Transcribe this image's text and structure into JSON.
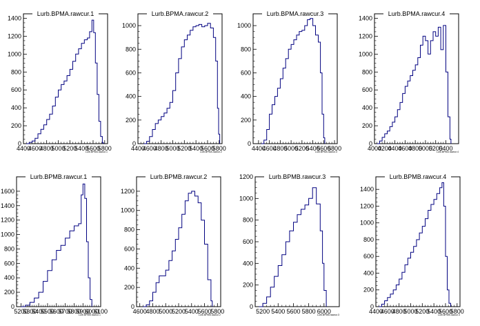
{
  "chart_data": [
    {
      "type": "histogram",
      "title": "Lurb.BPMA.rawcur.1",
      "xlabel": "Lurb.BPMA.rawcur.1",
      "xlim": [
        4400,
        5850
      ],
      "ylim": [
        0,
        1450
      ],
      "xticks": [
        4400,
        4600,
        4800,
        5000,
        5200,
        5400,
        5600,
        5800
      ],
      "yticks": [
        0,
        200,
        400,
        600,
        800,
        1000,
        1200,
        1400
      ],
      "curve": [
        [
          4450,
          0
        ],
        [
          4500,
          15
        ],
        [
          4550,
          30
        ],
        [
          4600,
          60
        ],
        [
          4650,
          110
        ],
        [
          4700,
          160
        ],
        [
          4750,
          210
        ],
        [
          4800,
          270
        ],
        [
          4850,
          330
        ],
        [
          4900,
          420
        ],
        [
          4950,
          520
        ],
        [
          5000,
          600
        ],
        [
          5050,
          660
        ],
        [
          5100,
          700
        ],
        [
          5150,
          760
        ],
        [
          5200,
          830
        ],
        [
          5250,
          920
        ],
        [
          5300,
          1000
        ],
        [
          5350,
          1060
        ],
        [
          5400,
          1120
        ],
        [
          5450,
          1160
        ],
        [
          5500,
          1180
        ],
        [
          5540,
          1250
        ],
        [
          5580,
          1380
        ],
        [
          5610,
          1240
        ],
        [
          5640,
          900
        ],
        [
          5670,
          550
        ],
        [
          5700,
          250
        ],
        [
          5730,
          80
        ],
        [
          5760,
          10
        ],
        [
          5780,
          0
        ]
      ]
    },
    {
      "type": "histogram",
      "title": "Lurb.BPMA.rawcur.2",
      "xlabel": "Lurb.BPMA.rawcur.2",
      "xlim": [
        4400,
        5850
      ],
      "ylim": [
        0,
        1100
      ],
      "xticks": [
        4400,
        4600,
        4800,
        5000,
        5200,
        5400,
        5600,
        5800
      ],
      "yticks": [
        0,
        200,
        400,
        600,
        800,
        1000
      ],
      "curve": [
        [
          4500,
          0
        ],
        [
          4550,
          20
        ],
        [
          4600,
          60
        ],
        [
          4650,
          120
        ],
        [
          4700,
          170
        ],
        [
          4750,
          200
        ],
        [
          4800,
          230
        ],
        [
          4850,
          260
        ],
        [
          4900,
          300
        ],
        [
          4950,
          350
        ],
        [
          5000,
          450
        ],
        [
          5050,
          600
        ],
        [
          5100,
          720
        ],
        [
          5150,
          820
        ],
        [
          5200,
          880
        ],
        [
          5250,
          920
        ],
        [
          5300,
          960
        ],
        [
          5350,
          990
        ],
        [
          5400,
          1000
        ],
        [
          5450,
          1010
        ],
        [
          5500,
          990
        ],
        [
          5550,
          1000
        ],
        [
          5600,
          1020
        ],
        [
          5650,
          980
        ],
        [
          5700,
          900
        ],
        [
          5740,
          700
        ],
        [
          5770,
          300
        ],
        [
          5790,
          80
        ],
        [
          5810,
          0
        ]
      ]
    },
    {
      "type": "histogram",
      "title": "Lurb.BPMA.rawcur.3",
      "xlabel": "Lurb.BPMA.rawcur.3",
      "xlim": [
        4300,
        5850
      ],
      "ylim": [
        0,
        1100
      ],
      "xticks": [
        4400,
        4600,
        4800,
        5000,
        5200,
        5400,
        5600,
        5800
      ],
      "yticks": [
        0,
        200,
        400,
        600,
        800,
        1000
      ],
      "curve": [
        [
          4450,
          0
        ],
        [
          4500,
          30
        ],
        [
          4550,
          120
        ],
        [
          4600,
          250
        ],
        [
          4650,
          330
        ],
        [
          4700,
          400
        ],
        [
          4750,
          470
        ],
        [
          4800,
          550
        ],
        [
          4850,
          640
        ],
        [
          4900,
          720
        ],
        [
          4950,
          800
        ],
        [
          5000,
          840
        ],
        [
          5050,
          880
        ],
        [
          5100,
          920
        ],
        [
          5150,
          950
        ],
        [
          5200,
          960
        ],
        [
          5250,
          1000
        ],
        [
          5300,
          1050
        ],
        [
          5350,
          1060
        ],
        [
          5400,
          1000
        ],
        [
          5450,
          920
        ],
        [
          5500,
          860
        ],
        [
          5540,
          600
        ],
        [
          5570,
          250
        ],
        [
          5600,
          50
        ],
        [
          5620,
          0
        ]
      ]
    },
    {
      "type": "histogram",
      "title": "Lurb.BPMA.rawcur.4",
      "xlabel": "Lurb.BPMA.rawcur.4",
      "xlim": [
        4000,
        5650
      ],
      "ylim": [
        0,
        1450
      ],
      "xticks": [
        4000,
        4200,
        4400,
        4600,
        4800,
        5000,
        5200,
        5400
      ],
      "yticks": [
        0,
        200,
        400,
        600,
        800,
        1000,
        1200,
        1400
      ],
      "curve": [
        [
          4050,
          0
        ],
        [
          4100,
          30
        ],
        [
          4150,
          70
        ],
        [
          4200,
          110
        ],
        [
          4250,
          140
        ],
        [
          4300,
          190
        ],
        [
          4350,
          240
        ],
        [
          4400,
          300
        ],
        [
          4450,
          380
        ],
        [
          4500,
          460
        ],
        [
          4550,
          560
        ],
        [
          4600,
          640
        ],
        [
          4650,
          700
        ],
        [
          4700,
          760
        ],
        [
          4750,
          820
        ],
        [
          4800,
          880
        ],
        [
          4850,
          960
        ],
        [
          4900,
          1100
        ],
        [
          4950,
          1200
        ],
        [
          5000,
          1150
        ],
        [
          5050,
          1000
        ],
        [
          5100,
          1150
        ],
        [
          5150,
          1250
        ],
        [
          5200,
          1200
        ],
        [
          5250,
          1300
        ],
        [
          5300,
          1050
        ],
        [
          5350,
          1320
        ],
        [
          5400,
          800
        ],
        [
          5440,
          300
        ],
        [
          5480,
          50
        ],
        [
          5500,
          0
        ]
      ]
    },
    {
      "type": "histogram",
      "title": "Lurb.BPMB.rawcur.1",
      "xlabel": "Lurb.BPMB.rawcur.1",
      "xlim": [
        5150,
        6100
      ],
      "ylim": [
        0,
        1800
      ],
      "xticks": [
        5200,
        5300,
        5400,
        5500,
        5600,
        5700,
        5800,
        5900,
        6000,
        6100
      ],
      "yticks": [
        0,
        200,
        400,
        600,
        800,
        1000,
        1200,
        1400,
        1600
      ],
      "curve": [
        [
          5200,
          0
        ],
        [
          5250,
          20
        ],
        [
          5300,
          60
        ],
        [
          5350,
          120
        ],
        [
          5400,
          200
        ],
        [
          5450,
          350
        ],
        [
          5500,
          500
        ],
        [
          5550,
          650
        ],
        [
          5600,
          780
        ],
        [
          5650,
          850
        ],
        [
          5700,
          950
        ],
        [
          5750,
          1050
        ],
        [
          5800,
          1120
        ],
        [
          5850,
          1150
        ],
        [
          5880,
          1550
        ],
        [
          5900,
          1700
        ],
        [
          5920,
          1500
        ],
        [
          5940,
          900
        ],
        [
          5960,
          400
        ],
        [
          5980,
          100
        ],
        [
          6000,
          0
        ]
      ]
    },
    {
      "type": "histogram",
      "title": "Lurb.BPMB.rawcur.2",
      "xlabel": "Lurb.BPMB.rawcur.2",
      "xlim": [
        4550,
        5850
      ],
      "ylim": [
        0,
        1350
      ],
      "xticks": [
        4600,
        4800,
        5000,
        5200,
        5400,
        5600,
        5800
      ],
      "yticks": [
        0,
        200,
        400,
        600,
        800,
        1000,
        1200
      ],
      "curve": [
        [
          4650,
          0
        ],
        [
          4700,
          20
        ],
        [
          4750,
          60
        ],
        [
          4800,
          150
        ],
        [
          4850,
          250
        ],
        [
          4900,
          320
        ],
        [
          4950,
          320
        ],
        [
          5000,
          380
        ],
        [
          5050,
          480
        ],
        [
          5100,
          580
        ],
        [
          5150,
          700
        ],
        [
          5200,
          820
        ],
        [
          5250,
          960
        ],
        [
          5300,
          1100
        ],
        [
          5350,
          1180
        ],
        [
          5400,
          1200
        ],
        [
          5450,
          1150
        ],
        [
          5500,
          1080
        ],
        [
          5550,
          900
        ],
        [
          5600,
          650
        ],
        [
          5650,
          280
        ],
        [
          5700,
          60
        ],
        [
          5720,
          0
        ]
      ]
    },
    {
      "type": "histogram",
      "title": "Lurb.BPMB.rawcur.3",
      "xlabel": "Lurb.BPMB.rawcur.3",
      "xlim": [
        5100,
        6200
      ],
      "ylim": [
        0,
        1200
      ],
      "xticks": [
        5200,
        5400,
        5600,
        5800,
        6000
      ],
      "yticks": [
        0,
        200,
        400,
        600,
        800,
        1000,
        1200
      ],
      "curve": [
        [
          5150,
          0
        ],
        [
          5200,
          30
        ],
        [
          5250,
          90
        ],
        [
          5300,
          180
        ],
        [
          5350,
          280
        ],
        [
          5400,
          380
        ],
        [
          5450,
          480
        ],
        [
          5500,
          600
        ],
        [
          5550,
          700
        ],
        [
          5600,
          780
        ],
        [
          5650,
          850
        ],
        [
          5700,
          900
        ],
        [
          5750,
          940
        ],
        [
          5800,
          1000
        ],
        [
          5850,
          1100
        ],
        [
          5900,
          950
        ],
        [
          5950,
          700
        ],
        [
          5980,
          400
        ],
        [
          6000,
          150
        ],
        [
          6030,
          0
        ]
      ]
    },
    {
      "type": "histogram",
      "title": "Lurb.BPMB.rawcur.4",
      "xlabel": "Lurb.BPMB.rawcur.4",
      "xlim": [
        4400,
        5850
      ],
      "ylim": [
        0,
        1550
      ],
      "xticks": [
        4400,
        4600,
        4800,
        5000,
        5200,
        5400,
        5600,
        5800
      ],
      "yticks": [
        0,
        200,
        400,
        600,
        800,
        1000,
        1200,
        1400
      ],
      "curve": [
        [
          4450,
          0
        ],
        [
          4500,
          30
        ],
        [
          4550,
          70
        ],
        [
          4600,
          110
        ],
        [
          4650,
          150
        ],
        [
          4700,
          200
        ],
        [
          4750,
          260
        ],
        [
          4800,
          330
        ],
        [
          4850,
          410
        ],
        [
          4900,
          500
        ],
        [
          4950,
          580
        ],
        [
          5000,
          650
        ],
        [
          5050,
          720
        ],
        [
          5100,
          800
        ],
        [
          5150,
          880
        ],
        [
          5200,
          960
        ],
        [
          5250,
          1050
        ],
        [
          5300,
          1150
        ],
        [
          5350,
          1220
        ],
        [
          5400,
          1280
        ],
        [
          5450,
          1350
        ],
        [
          5500,
          1420
        ],
        [
          5540,
          1480
        ],
        [
          5570,
          1200
        ],
        [
          5600,
          600
        ],
        [
          5630,
          200
        ],
        [
          5660,
          40
        ],
        [
          5690,
          0
        ]
      ]
    }
  ]
}
